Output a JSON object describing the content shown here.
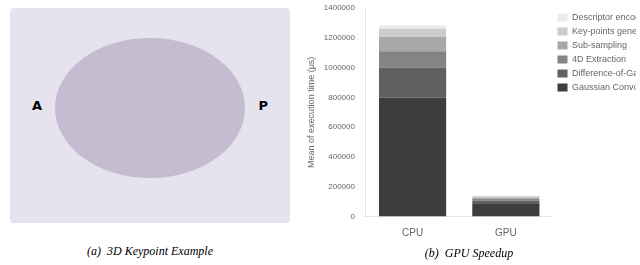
{
  "chart_data": {
    "type": "bar",
    "title": "(b)  GPU Speedup",
    "categories": [
      "CPU",
      "GPU"
    ],
    "series": [
      {
        "name": "Gaussian Convolution",
        "color": "#3d3d3d",
        "values": [
          800000,
          85000
        ]
      },
      {
        "name": "Difference-of-Gaussian",
        "color": "#606060",
        "values": [
          200000,
          22000
        ]
      },
      {
        "name": "4D Extraction",
        "color": "#848484",
        "values": [
          110000,
          12000
        ]
      },
      {
        "name": "Sub-sampling",
        "color": "#a8a8a8",
        "values": [
          95000,
          10000
        ]
      },
      {
        "name": "Key-points generation",
        "color": "#cccccc",
        "values": [
          55000,
          7000
        ]
      },
      {
        "name": "Descriptor encoding",
        "color": "#ebebeb",
        "values": [
          25000,
          4000
        ]
      }
    ],
    "ylabel": "Mean of execution time (μs)",
    "ylim": [
      0,
      1400000
    ],
    "yticks": [
      0,
      200000,
      400000,
      600000,
      800000,
      1000000,
      1200000,
      1400000
    ],
    "stacked": true,
    "grid": false,
    "legend": "right",
    "annotations": [
      "(a)  3D Keypoint Example",
      "A",
      "P"
    ]
  }
}
